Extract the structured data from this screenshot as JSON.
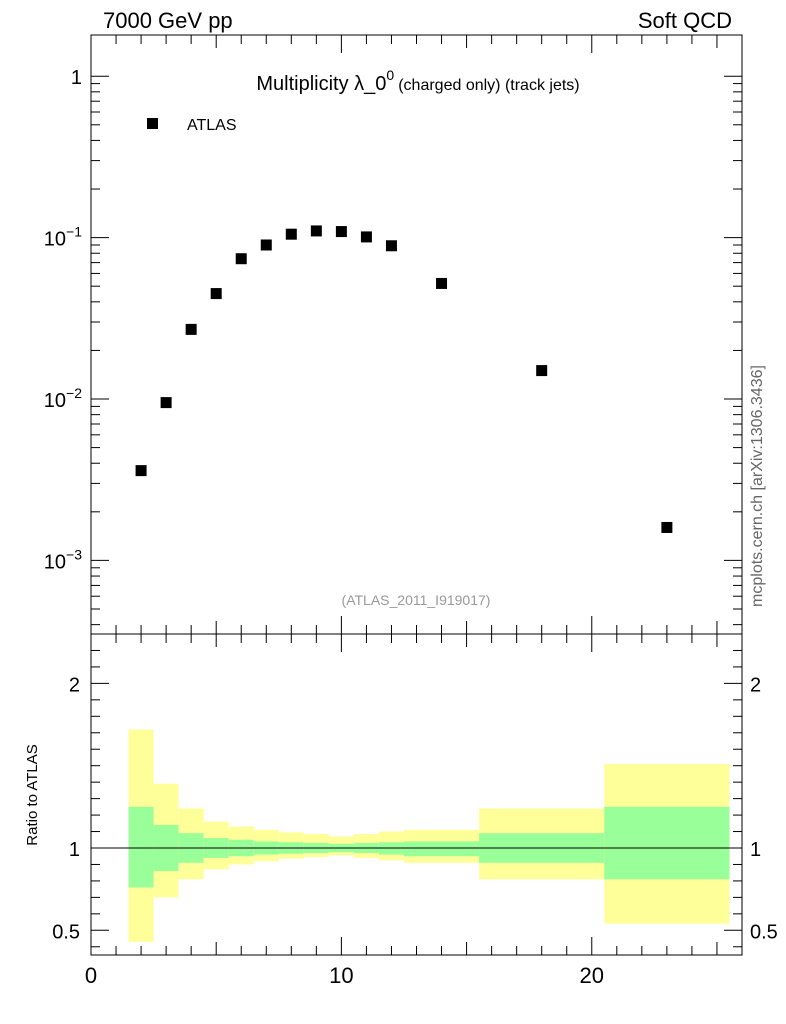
{
  "header": {
    "left": "7000 GeV pp",
    "right": "Soft QCD"
  },
  "side_label": "mcplots.cern.ch [arXiv:1306.3436]",
  "chart_data": [
    {
      "type": "scatter",
      "panel": "main",
      "title_main": "Multiplicity λ_0",
      "title_sup": "0",
      "title_suffix": "(charged only) (track jets)",
      "legend": [
        {
          "name": "ATLAS",
          "marker": "square",
          "color": "#000000"
        }
      ],
      "legend_position": "top-left",
      "analysis_label": "(ATLAS_2011_I919017)",
      "yscale": "log",
      "ylim": [
        0.00035,
        1.8
      ],
      "xlim": [
        0,
        26
      ],
      "y_tick_labels": [
        {
          "value": 1,
          "base": "1",
          "exp": ""
        },
        {
          "value": 0.1,
          "base": "10",
          "exp": "−1"
        },
        {
          "value": 0.01,
          "base": "10",
          "exp": "−2"
        },
        {
          "value": 0.001,
          "base": "10",
          "exp": "−3"
        }
      ],
      "series": [
        {
          "name": "ATLAS",
          "x": [
            2,
            3,
            4,
            5,
            6,
            7,
            8,
            9,
            10,
            11,
            12,
            14,
            18,
            23
          ],
          "y": [
            0.0036,
            0.0095,
            0.027,
            0.045,
            0.074,
            0.09,
            0.105,
            0.11,
            0.109,
            0.101,
            0.089,
            0.052,
            0.015,
            0.0016
          ]
        }
      ]
    },
    {
      "type": "band",
      "panel": "ratio",
      "ylabel": "Ratio to ATLAS",
      "xlim": [
        0,
        26
      ],
      "ylim": [
        0.35,
        2.3
      ],
      "x_tick_labels": [
        {
          "value": 0,
          "label": "0"
        },
        {
          "value": 10,
          "label": "10"
        },
        {
          "value": 20,
          "label": "20"
        }
      ],
      "y_tick_labels": [
        {
          "value": 2,
          "label": "2"
        },
        {
          "value": 1,
          "label": "1"
        },
        {
          "value": 0.5,
          "label": "0.5"
        }
      ],
      "reference_line": 1,
      "bins": [
        {
          "xlo": 1.5,
          "xhi": 2.5,
          "green_lo": 0.76,
          "green_hi": 1.25,
          "yellow_lo": 0.43,
          "yellow_hi": 1.72
        },
        {
          "xlo": 2.5,
          "xhi": 3.5,
          "green_lo": 0.86,
          "green_hi": 1.14,
          "yellow_lo": 0.7,
          "yellow_hi": 1.39
        },
        {
          "xlo": 3.5,
          "xhi": 4.5,
          "green_lo": 0.91,
          "green_hi": 1.09,
          "yellow_lo": 0.81,
          "yellow_hi": 1.24
        },
        {
          "xlo": 4.5,
          "xhi": 5.5,
          "green_lo": 0.94,
          "green_hi": 1.06,
          "yellow_lo": 0.87,
          "yellow_hi": 1.16
        },
        {
          "xlo": 5.5,
          "xhi": 6.5,
          "green_lo": 0.95,
          "green_hi": 1.05,
          "yellow_lo": 0.9,
          "yellow_hi": 1.13
        },
        {
          "xlo": 6.5,
          "xhi": 7.5,
          "green_lo": 0.96,
          "green_hi": 1.04,
          "yellow_lo": 0.92,
          "yellow_hi": 1.11
        },
        {
          "xlo": 7.5,
          "xhi": 8.5,
          "green_lo": 0.965,
          "green_hi": 1.035,
          "yellow_lo": 0.935,
          "yellow_hi": 1.095
        },
        {
          "xlo": 8.5,
          "xhi": 9.5,
          "green_lo": 0.97,
          "green_hi": 1.03,
          "yellow_lo": 0.945,
          "yellow_hi": 1.085
        },
        {
          "xlo": 9.5,
          "xhi": 10.5,
          "green_lo": 0.975,
          "green_hi": 1.025,
          "yellow_lo": 0.955,
          "yellow_hi": 1.07
        },
        {
          "xlo": 10.5,
          "xhi": 11.5,
          "green_lo": 0.97,
          "green_hi": 1.03,
          "yellow_lo": 0.94,
          "yellow_hi": 1.085
        },
        {
          "xlo": 11.5,
          "xhi": 12.5,
          "green_lo": 0.96,
          "green_hi": 1.035,
          "yellow_lo": 0.925,
          "yellow_hi": 1.1
        },
        {
          "xlo": 12.5,
          "xhi": 15.5,
          "green_lo": 0.95,
          "green_hi": 1.04,
          "yellow_lo": 0.91,
          "yellow_hi": 1.11
        },
        {
          "xlo": 15.5,
          "xhi": 20.5,
          "green_lo": 0.91,
          "green_hi": 1.09,
          "yellow_lo": 0.81,
          "yellow_hi": 1.24
        },
        {
          "xlo": 20.5,
          "xhi": 25.5,
          "green_lo": 0.81,
          "green_hi": 1.25,
          "yellow_lo": 0.54,
          "yellow_hi": 1.51
        }
      ],
      "colors": {
        "green": "#99ff99",
        "yellow": "#ffff99"
      }
    }
  ]
}
